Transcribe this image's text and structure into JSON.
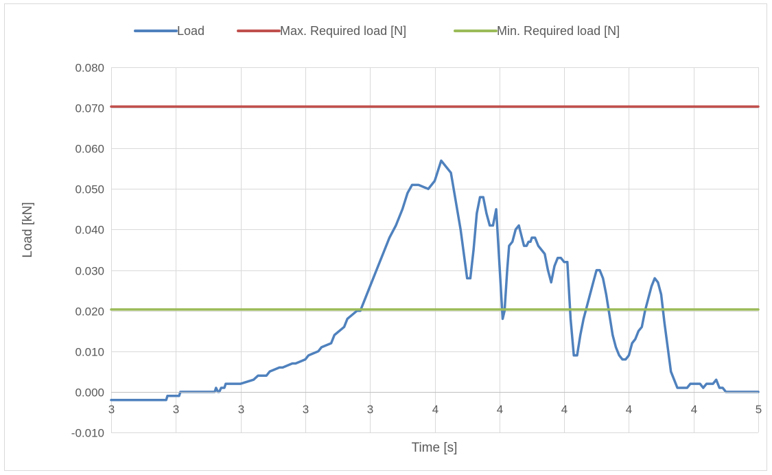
{
  "chart_data": {
    "type": "line",
    "title": "",
    "xlabel": "Time [s]",
    "ylabel": "Load [kN]",
    "ylim": [
      -0.01,
      0.08
    ],
    "yticks": [
      "0.080",
      "0.070",
      "0.060",
      "0.050",
      "0.040",
      "0.030",
      "0.020",
      "0.010",
      "0.000",
      "-0.010"
    ],
    "yticks_values": [
      0.08,
      0.07,
      0.06,
      0.05,
      0.04,
      0.03,
      0.02,
      0.01,
      0.0,
      -0.01
    ],
    "xticks": [
      "3",
      "3",
      "3",
      "3",
      "3",
      "4",
      "4",
      "4",
      "4",
      "4",
      "5"
    ],
    "xlim": [
      0,
      10
    ],
    "grid": true,
    "legend_position": "top",
    "series": [
      {
        "name": "Load",
        "color": "#4f81bd",
        "x": [
          0.0,
          0.5,
          0.85,
          0.87,
          1.0,
          1.05,
          1.07,
          1.4,
          1.6,
          1.62,
          1.65,
          1.67,
          1.7,
          1.75,
          1.77,
          1.85,
          1.87,
          2.0,
          2.2,
          2.27,
          2.4,
          2.45,
          2.6,
          2.65,
          2.8,
          2.85,
          3.0,
          3.05,
          3.2,
          3.25,
          3.4,
          3.45,
          3.6,
          3.65,
          3.8,
          3.85,
          4.0,
          4.1,
          4.2,
          4.3,
          4.4,
          4.5,
          4.58,
          4.65,
          4.75,
          4.9,
          5.0,
          5.1,
          5.25,
          5.4,
          5.5,
          5.55,
          5.6,
          5.65,
          5.7,
          5.75,
          5.8,
          5.85,
          5.9,
          5.95,
          6.05,
          6.08,
          6.12,
          6.15,
          6.2,
          6.25,
          6.3,
          6.38,
          6.42,
          6.45,
          6.48,
          6.5,
          6.55,
          6.6,
          6.65,
          6.7,
          6.75,
          6.8,
          6.85,
          6.9,
          6.95,
          7.0,
          7.05,
          7.1,
          7.15,
          7.2,
          7.25,
          7.3,
          7.35,
          7.4,
          7.45,
          7.5,
          7.55,
          7.6,
          7.65,
          7.7,
          7.75,
          7.8,
          7.85,
          7.9,
          7.95,
          8.0,
          8.05,
          8.1,
          8.15,
          8.2,
          8.25,
          8.3,
          8.35,
          8.4,
          8.45,
          8.5,
          8.55,
          8.6,
          8.65,
          8.7,
          8.75,
          8.8,
          8.85,
          8.9,
          8.95,
          9.0,
          9.05,
          9.1,
          9.15,
          9.2,
          9.25,
          9.3,
          9.35,
          9.4,
          9.45,
          9.5,
          9.55,
          9.6,
          9.65,
          9.7,
          9.75,
          9.8,
          9.85,
          9.9,
          9.95,
          10.0
        ],
        "y": [
          -0.002,
          -0.002,
          -0.002,
          -0.001,
          -0.001,
          -0.001,
          0.0,
          0.0,
          0.0,
          0.001,
          0.0,
          0.0,
          0.001,
          0.001,
          0.002,
          0.002,
          0.002,
          0.002,
          0.003,
          0.004,
          0.004,
          0.005,
          0.006,
          0.006,
          0.007,
          0.007,
          0.008,
          0.009,
          0.01,
          0.011,
          0.012,
          0.014,
          0.016,
          0.018,
          0.02,
          0.02,
          0.026,
          0.03,
          0.034,
          0.038,
          0.041,
          0.045,
          0.049,
          0.051,
          0.051,
          0.05,
          0.052,
          0.057,
          0.054,
          0.04,
          0.028,
          0.028,
          0.035,
          0.044,
          0.048,
          0.048,
          0.044,
          0.041,
          0.041,
          0.045,
          0.018,
          0.02,
          0.03,
          0.036,
          0.037,
          0.04,
          0.041,
          0.036,
          0.036,
          0.037,
          0.037,
          0.038,
          0.038,
          0.036,
          0.035,
          0.034,
          0.03,
          0.027,
          0.031,
          0.033,
          0.033,
          0.032,
          0.032,
          0.018,
          0.009,
          0.009,
          0.014,
          0.018,
          0.021,
          0.024,
          0.027,
          0.03,
          0.03,
          0.028,
          0.024,
          0.019,
          0.014,
          0.011,
          0.009,
          0.008,
          0.008,
          0.009,
          0.012,
          0.013,
          0.015,
          0.016,
          0.02,
          0.023,
          0.026,
          0.028,
          0.027,
          0.024,
          0.017,
          0.011,
          0.005,
          0.003,
          0.001,
          0.001,
          0.001,
          0.001,
          0.002,
          0.002,
          0.002,
          0.002,
          0.001,
          0.002,
          0.002,
          0.002,
          0.003,
          0.001,
          0.001,
          0.0,
          0.0,
          0.0,
          0.0,
          0.0,
          0.0,
          0.0,
          0.0,
          0.0,
          0.0,
          0.0
        ]
      },
      {
        "name": "Max. Required load [N]",
        "color": "#c0504d",
        "x": [
          0,
          10
        ],
        "y": [
          0.0703,
          0.0703
        ]
      },
      {
        "name": "Min. Required load [N]",
        "color": "#9bbb59",
        "x": [
          0,
          10
        ],
        "y": [
          0.0203,
          0.0203
        ]
      }
    ]
  }
}
